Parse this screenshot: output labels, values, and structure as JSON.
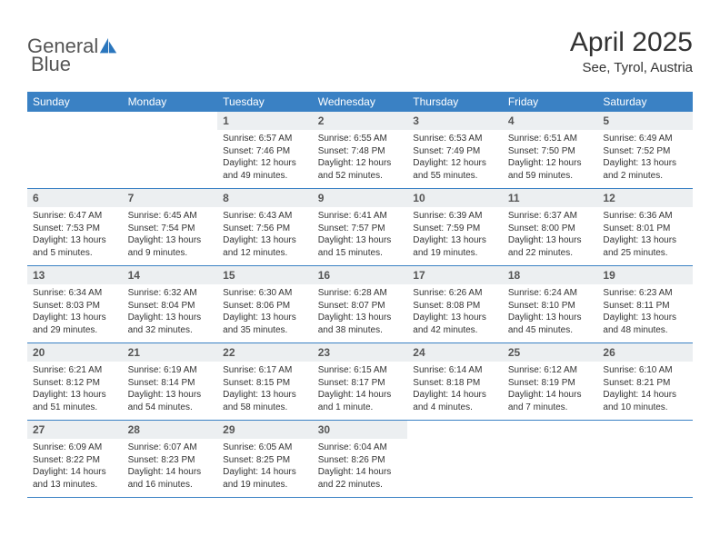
{
  "logo": {
    "word1": "General",
    "word2": "Blue"
  },
  "title": "April 2025",
  "location": "See, Tyrol, Austria",
  "colors": {
    "header_bg": "#3a81c4",
    "header_text": "#ffffff",
    "daynum_bg": "#eceff1",
    "border": "#3a81c4",
    "logo_accent": "#2a76bd",
    "logo_text": "#555555"
  },
  "day_headers": [
    "Sunday",
    "Monday",
    "Tuesday",
    "Wednesday",
    "Thursday",
    "Friday",
    "Saturday"
  ],
  "weeks": [
    [
      null,
      null,
      {
        "n": "1",
        "sr": "Sunrise: 6:57 AM",
        "ss": "Sunset: 7:46 PM",
        "dl": "Daylight: 12 hours and 49 minutes."
      },
      {
        "n": "2",
        "sr": "Sunrise: 6:55 AM",
        "ss": "Sunset: 7:48 PM",
        "dl": "Daylight: 12 hours and 52 minutes."
      },
      {
        "n": "3",
        "sr": "Sunrise: 6:53 AM",
        "ss": "Sunset: 7:49 PM",
        "dl": "Daylight: 12 hours and 55 minutes."
      },
      {
        "n": "4",
        "sr": "Sunrise: 6:51 AM",
        "ss": "Sunset: 7:50 PM",
        "dl": "Daylight: 12 hours and 59 minutes."
      },
      {
        "n": "5",
        "sr": "Sunrise: 6:49 AM",
        "ss": "Sunset: 7:52 PM",
        "dl": "Daylight: 13 hours and 2 minutes."
      }
    ],
    [
      {
        "n": "6",
        "sr": "Sunrise: 6:47 AM",
        "ss": "Sunset: 7:53 PM",
        "dl": "Daylight: 13 hours and 5 minutes."
      },
      {
        "n": "7",
        "sr": "Sunrise: 6:45 AM",
        "ss": "Sunset: 7:54 PM",
        "dl": "Daylight: 13 hours and 9 minutes."
      },
      {
        "n": "8",
        "sr": "Sunrise: 6:43 AM",
        "ss": "Sunset: 7:56 PM",
        "dl": "Daylight: 13 hours and 12 minutes."
      },
      {
        "n": "9",
        "sr": "Sunrise: 6:41 AM",
        "ss": "Sunset: 7:57 PM",
        "dl": "Daylight: 13 hours and 15 minutes."
      },
      {
        "n": "10",
        "sr": "Sunrise: 6:39 AM",
        "ss": "Sunset: 7:59 PM",
        "dl": "Daylight: 13 hours and 19 minutes."
      },
      {
        "n": "11",
        "sr": "Sunrise: 6:37 AM",
        "ss": "Sunset: 8:00 PM",
        "dl": "Daylight: 13 hours and 22 minutes."
      },
      {
        "n": "12",
        "sr": "Sunrise: 6:36 AM",
        "ss": "Sunset: 8:01 PM",
        "dl": "Daylight: 13 hours and 25 minutes."
      }
    ],
    [
      {
        "n": "13",
        "sr": "Sunrise: 6:34 AM",
        "ss": "Sunset: 8:03 PM",
        "dl": "Daylight: 13 hours and 29 minutes."
      },
      {
        "n": "14",
        "sr": "Sunrise: 6:32 AM",
        "ss": "Sunset: 8:04 PM",
        "dl": "Daylight: 13 hours and 32 minutes."
      },
      {
        "n": "15",
        "sr": "Sunrise: 6:30 AM",
        "ss": "Sunset: 8:06 PM",
        "dl": "Daylight: 13 hours and 35 minutes."
      },
      {
        "n": "16",
        "sr": "Sunrise: 6:28 AM",
        "ss": "Sunset: 8:07 PM",
        "dl": "Daylight: 13 hours and 38 minutes."
      },
      {
        "n": "17",
        "sr": "Sunrise: 6:26 AM",
        "ss": "Sunset: 8:08 PM",
        "dl": "Daylight: 13 hours and 42 minutes."
      },
      {
        "n": "18",
        "sr": "Sunrise: 6:24 AM",
        "ss": "Sunset: 8:10 PM",
        "dl": "Daylight: 13 hours and 45 minutes."
      },
      {
        "n": "19",
        "sr": "Sunrise: 6:23 AM",
        "ss": "Sunset: 8:11 PM",
        "dl": "Daylight: 13 hours and 48 minutes."
      }
    ],
    [
      {
        "n": "20",
        "sr": "Sunrise: 6:21 AM",
        "ss": "Sunset: 8:12 PM",
        "dl": "Daylight: 13 hours and 51 minutes."
      },
      {
        "n": "21",
        "sr": "Sunrise: 6:19 AM",
        "ss": "Sunset: 8:14 PM",
        "dl": "Daylight: 13 hours and 54 minutes."
      },
      {
        "n": "22",
        "sr": "Sunrise: 6:17 AM",
        "ss": "Sunset: 8:15 PM",
        "dl": "Daylight: 13 hours and 58 minutes."
      },
      {
        "n": "23",
        "sr": "Sunrise: 6:15 AM",
        "ss": "Sunset: 8:17 PM",
        "dl": "Daylight: 14 hours and 1 minute."
      },
      {
        "n": "24",
        "sr": "Sunrise: 6:14 AM",
        "ss": "Sunset: 8:18 PM",
        "dl": "Daylight: 14 hours and 4 minutes."
      },
      {
        "n": "25",
        "sr": "Sunrise: 6:12 AM",
        "ss": "Sunset: 8:19 PM",
        "dl": "Daylight: 14 hours and 7 minutes."
      },
      {
        "n": "26",
        "sr": "Sunrise: 6:10 AM",
        "ss": "Sunset: 8:21 PM",
        "dl": "Daylight: 14 hours and 10 minutes."
      }
    ],
    [
      {
        "n": "27",
        "sr": "Sunrise: 6:09 AM",
        "ss": "Sunset: 8:22 PM",
        "dl": "Daylight: 14 hours and 13 minutes."
      },
      {
        "n": "28",
        "sr": "Sunrise: 6:07 AM",
        "ss": "Sunset: 8:23 PM",
        "dl": "Daylight: 14 hours and 16 minutes."
      },
      {
        "n": "29",
        "sr": "Sunrise: 6:05 AM",
        "ss": "Sunset: 8:25 PM",
        "dl": "Daylight: 14 hours and 19 minutes."
      },
      {
        "n": "30",
        "sr": "Sunrise: 6:04 AM",
        "ss": "Sunset: 8:26 PM",
        "dl": "Daylight: 14 hours and 22 minutes."
      },
      null,
      null,
      null
    ]
  ]
}
